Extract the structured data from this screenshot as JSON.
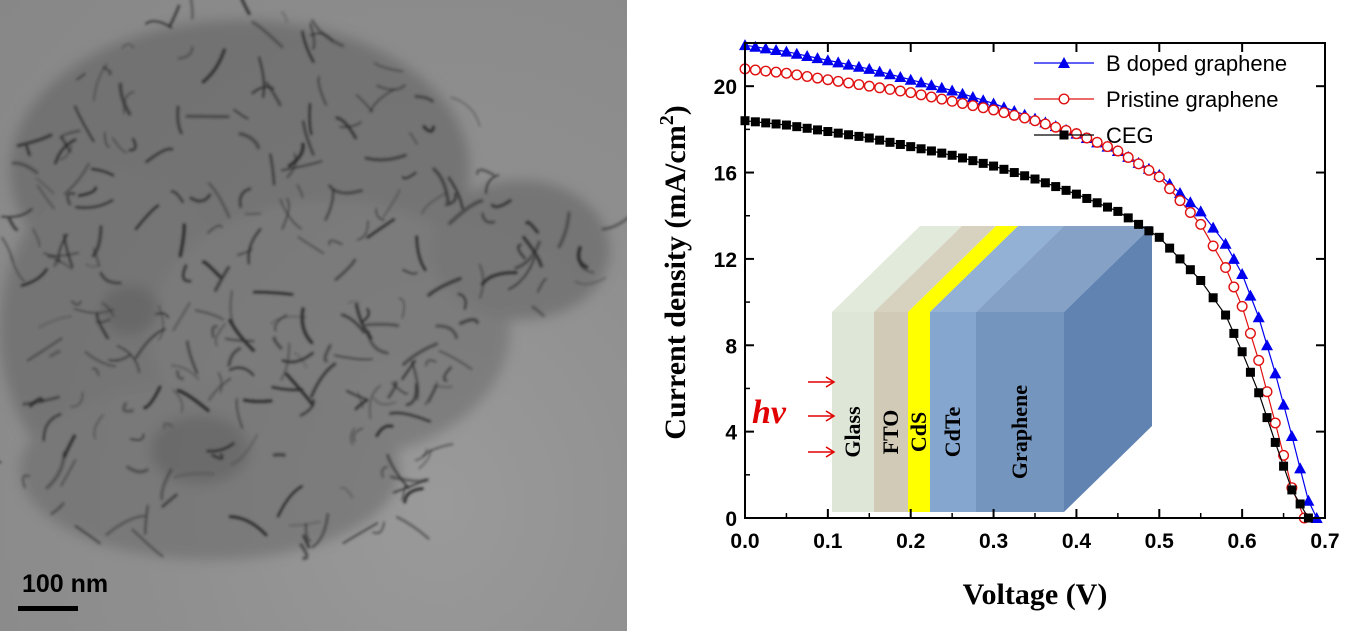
{
  "micrograph": {
    "scale_bar_label": "100 nm"
  },
  "chart_data": {
    "type": "line",
    "title": "",
    "xlabel": "Voltage (V)",
    "ylabel": "Current density (mA/cm",
    "ylabel_superscript": "2",
    "ylabel_close": ")",
    "xlim": [
      0.0,
      0.7
    ],
    "ylim": [
      0,
      22
    ],
    "xticks": [
      "0.0",
      "0.1",
      "0.2",
      "0.3",
      "0.4",
      "0.5",
      "0.6",
      "0.7"
    ],
    "yticks": [
      "0",
      "4",
      "8",
      "12",
      "16",
      "20"
    ],
    "grid": false,
    "legend_position": "top-right",
    "series": [
      {
        "name": "B doped graphene",
        "color": "#0000ee",
        "marker": "triangle-filled",
        "x": [
          0.0,
          0.05,
          0.1,
          0.15,
          0.2,
          0.25,
          0.3,
          0.35,
          0.4,
          0.45,
          0.5,
          0.55,
          0.58,
          0.6,
          0.62,
          0.64,
          0.66,
          0.68,
          0.69
        ],
        "y": [
          21.9,
          21.6,
          21.2,
          20.8,
          20.3,
          19.8,
          19.2,
          18.5,
          17.8,
          17.0,
          15.9,
          14.2,
          12.7,
          11.3,
          9.3,
          6.7,
          3.8,
          0.8,
          0.0
        ]
      },
      {
        "name": "Pristine graphene",
        "color": "#e01010",
        "marker": "circle-open",
        "x": [
          0.0,
          0.05,
          0.1,
          0.15,
          0.2,
          0.25,
          0.3,
          0.35,
          0.4,
          0.45,
          0.5,
          0.55,
          0.58,
          0.6,
          0.62,
          0.64,
          0.66,
          0.675
        ],
        "y": [
          20.8,
          20.6,
          20.3,
          20.0,
          19.7,
          19.3,
          18.9,
          18.4,
          17.8,
          17.0,
          15.8,
          13.6,
          11.6,
          9.8,
          7.3,
          4.4,
          1.4,
          0.0
        ]
      },
      {
        "name": "CEG",
        "color": "#000000",
        "marker": "square-filled",
        "x": [
          0.0,
          0.05,
          0.1,
          0.15,
          0.2,
          0.25,
          0.3,
          0.35,
          0.4,
          0.45,
          0.5,
          0.55,
          0.58,
          0.6,
          0.62,
          0.64,
          0.66,
          0.68
        ],
        "y": [
          18.4,
          18.2,
          17.9,
          17.6,
          17.2,
          16.8,
          16.3,
          15.7,
          15.0,
          14.2,
          13.0,
          11.0,
          9.4,
          7.7,
          5.8,
          3.5,
          1.3,
          0.0
        ]
      }
    ],
    "inset": {
      "layers": [
        {
          "label": "Glass",
          "color": "#d8e3d0"
        },
        {
          "label": "FTO",
          "color": "#c9c1a9"
        },
        {
          "label": "CdS",
          "color": "#ffff00"
        },
        {
          "label": "CdTe",
          "color": "#6f96c7"
        },
        {
          "label": "Graphene",
          "color": "#5c82b3"
        }
      ],
      "illumination_label": "hv",
      "arrow_color": "#e00000"
    }
  }
}
